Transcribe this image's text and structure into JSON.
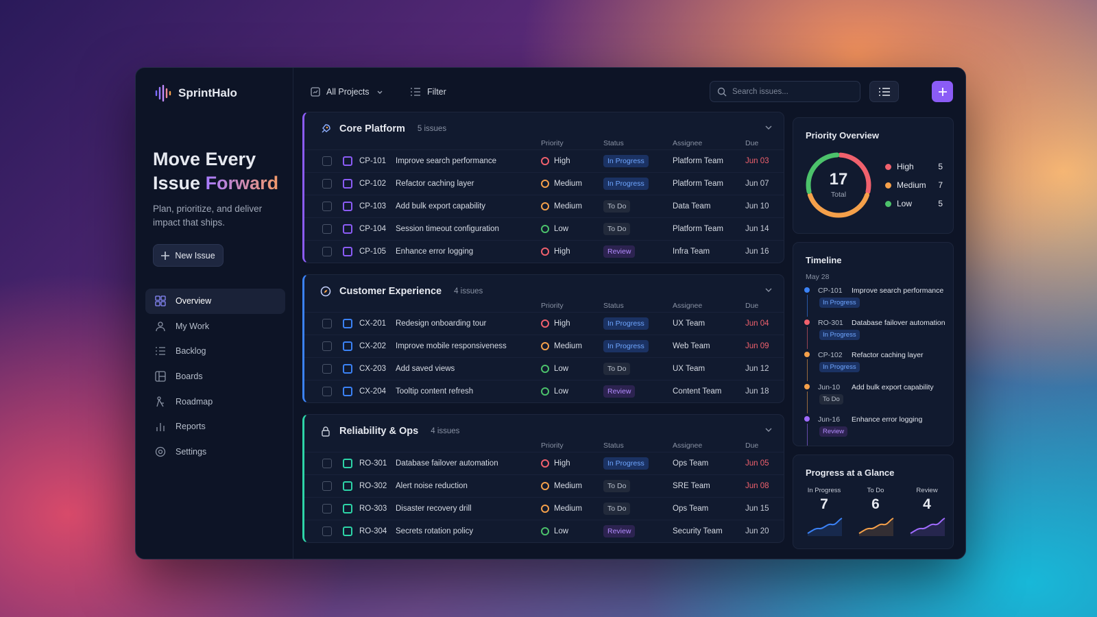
{
  "brand": "SprintHalo",
  "hero": {
    "title_line1": "Move Every",
    "title_line2": "Issue",
    "title_accent": "Forward",
    "subtitle": "Plan, prioritize, and deliver impact that ships.",
    "button": "New Issue"
  },
  "nav": [
    {
      "label": "Overview",
      "active": true
    },
    {
      "label": "My Work"
    },
    {
      "label": "Backlog"
    },
    {
      "label": "Boards"
    },
    {
      "label": "Roadmap"
    },
    {
      "label": "Reports"
    },
    {
      "label": "Settings"
    }
  ],
  "toolbar": {
    "projects": "All Projects",
    "filter": "Filter",
    "search_placeholder": "Search issues..."
  },
  "columns": [
    "Priority",
    "Status",
    "Assignee",
    "Due"
  ],
  "priority_colors": {
    "High": "#f0616d",
    "Medium": "#f5a04a",
    "Low": "#4cc26b"
  },
  "status_colors": {
    "In Progress": {
      "bg": "#1b3263",
      "fg": "#6fa6ff"
    },
    "To Do": {
      "bg": "#222a3b",
      "fg": "#b9c0cc"
    },
    "Review": {
      "bg": "#2c2350",
      "fg": "#b48cff"
    }
  },
  "groups": [
    {
      "name": "Core Platform",
      "count": "5 issues",
      "color": "#8b5cf6",
      "rows": [
        {
          "id": "CP-101",
          "title": "Improve search performance",
          "priority": "High",
          "status": "In Progress",
          "assignee": "Platform Team",
          "due": "Jun 03",
          "overdue": true
        },
        {
          "id": "CP-102",
          "title": "Refactor caching layer",
          "priority": "Medium",
          "status": "In Progress",
          "assignee": "Platform Team",
          "due": "Jun 07",
          "overdue": false
        },
        {
          "id": "CP-103",
          "title": "Add bulk export capability",
          "priority": "Medium",
          "status": "To Do",
          "assignee": "Data Team",
          "due": "Jun 10",
          "overdue": false
        },
        {
          "id": "CP-104",
          "title": "Session timeout configuration",
          "priority": "Low",
          "status": "To Do",
          "assignee": "Platform Team",
          "due": "Jun 14",
          "overdue": false
        },
        {
          "id": "CP-105",
          "title": "Enhance error logging",
          "priority": "High",
          "status": "Review",
          "assignee": "Infra Team",
          "due": "Jun 16",
          "overdue": false
        }
      ]
    },
    {
      "name": "Customer Experience",
      "count": "4 issues",
      "color": "#3b82f6",
      "rows": [
        {
          "id": "CX-201",
          "title": "Redesign onboarding tour",
          "priority": "High",
          "status": "In Progress",
          "assignee": "UX Team",
          "due": "Jun 04",
          "overdue": true
        },
        {
          "id": "CX-202",
          "title": "Improve mobile responsiveness",
          "priority": "Medium",
          "status": "In Progress",
          "assignee": "Web Team",
          "due": "Jun 09",
          "overdue": true
        },
        {
          "id": "CX-203",
          "title": "Add saved views",
          "priority": "Low",
          "status": "To Do",
          "assignee": "UX Team",
          "due": "Jun 12",
          "overdue": false
        },
        {
          "id": "CX-204",
          "title": "Tooltip content refresh",
          "priority": "Low",
          "status": "Review",
          "assignee": "Content Team",
          "due": "Jun 18",
          "overdue": false
        }
      ]
    },
    {
      "name": "Reliability & Ops",
      "count": "4 issues",
      "color": "#2dd4a7",
      "rows": [
        {
          "id": "RO-301",
          "title": "Database failover automation",
          "priority": "High",
          "status": "In Progress",
          "assignee": "Ops Team",
          "due": "Jun 05",
          "overdue": true
        },
        {
          "id": "RO-302",
          "title": "Alert noise reduction",
          "priority": "Medium",
          "status": "To Do",
          "assignee": "SRE Team",
          "due": "Jun 08",
          "overdue": true
        },
        {
          "id": "RO-303",
          "title": "Disaster recovery drill",
          "priority": "Medium",
          "status": "To Do",
          "assignee": "Ops Team",
          "due": "Jun 15",
          "overdue": false
        },
        {
          "id": "RO-304",
          "title": "Secrets rotation policy",
          "priority": "Low",
          "status": "Review",
          "assignee": "Security Team",
          "due": "Jun 20",
          "overdue": false
        }
      ]
    }
  ],
  "priority_overview": {
    "title": "Priority Overview",
    "total": 17,
    "total_label": "Total",
    "items": [
      {
        "name": "High",
        "count": 5,
        "color": "#f0616d"
      },
      {
        "name": "Medium",
        "count": 7,
        "color": "#f5a04a"
      },
      {
        "name": "Low",
        "count": 5,
        "color": "#4cc26b"
      }
    ]
  },
  "timeline": {
    "title": "Timeline",
    "date": "May 28",
    "items": [
      {
        "key": "CP-101",
        "title": "Improve search performance",
        "status": "In Progress",
        "color": "#3b82f6"
      },
      {
        "key": "RO-301",
        "title": "Database failover automation",
        "status": "In Progress",
        "color": "#f0616d"
      },
      {
        "key": "CP-102",
        "title": "Refactor caching layer",
        "status": "In Progress",
        "color": "#f5a04a"
      },
      {
        "key": "Jun-10",
        "title": "Add bulk export capability",
        "status": "To Do",
        "color": "#f5a04a"
      },
      {
        "key": "Jun-16",
        "title": "Enhance error logging",
        "status": "Review",
        "color": "#a06bff"
      }
    ]
  },
  "progress": {
    "title": "Progress at a Glance",
    "stats": [
      {
        "label": "In Progress",
        "value": 7,
        "color": "#3b82f6"
      },
      {
        "label": "To Do",
        "value": 6,
        "color": "#f5a04a"
      },
      {
        "label": "Review",
        "value": 4,
        "color": "#a06bff"
      }
    ]
  }
}
